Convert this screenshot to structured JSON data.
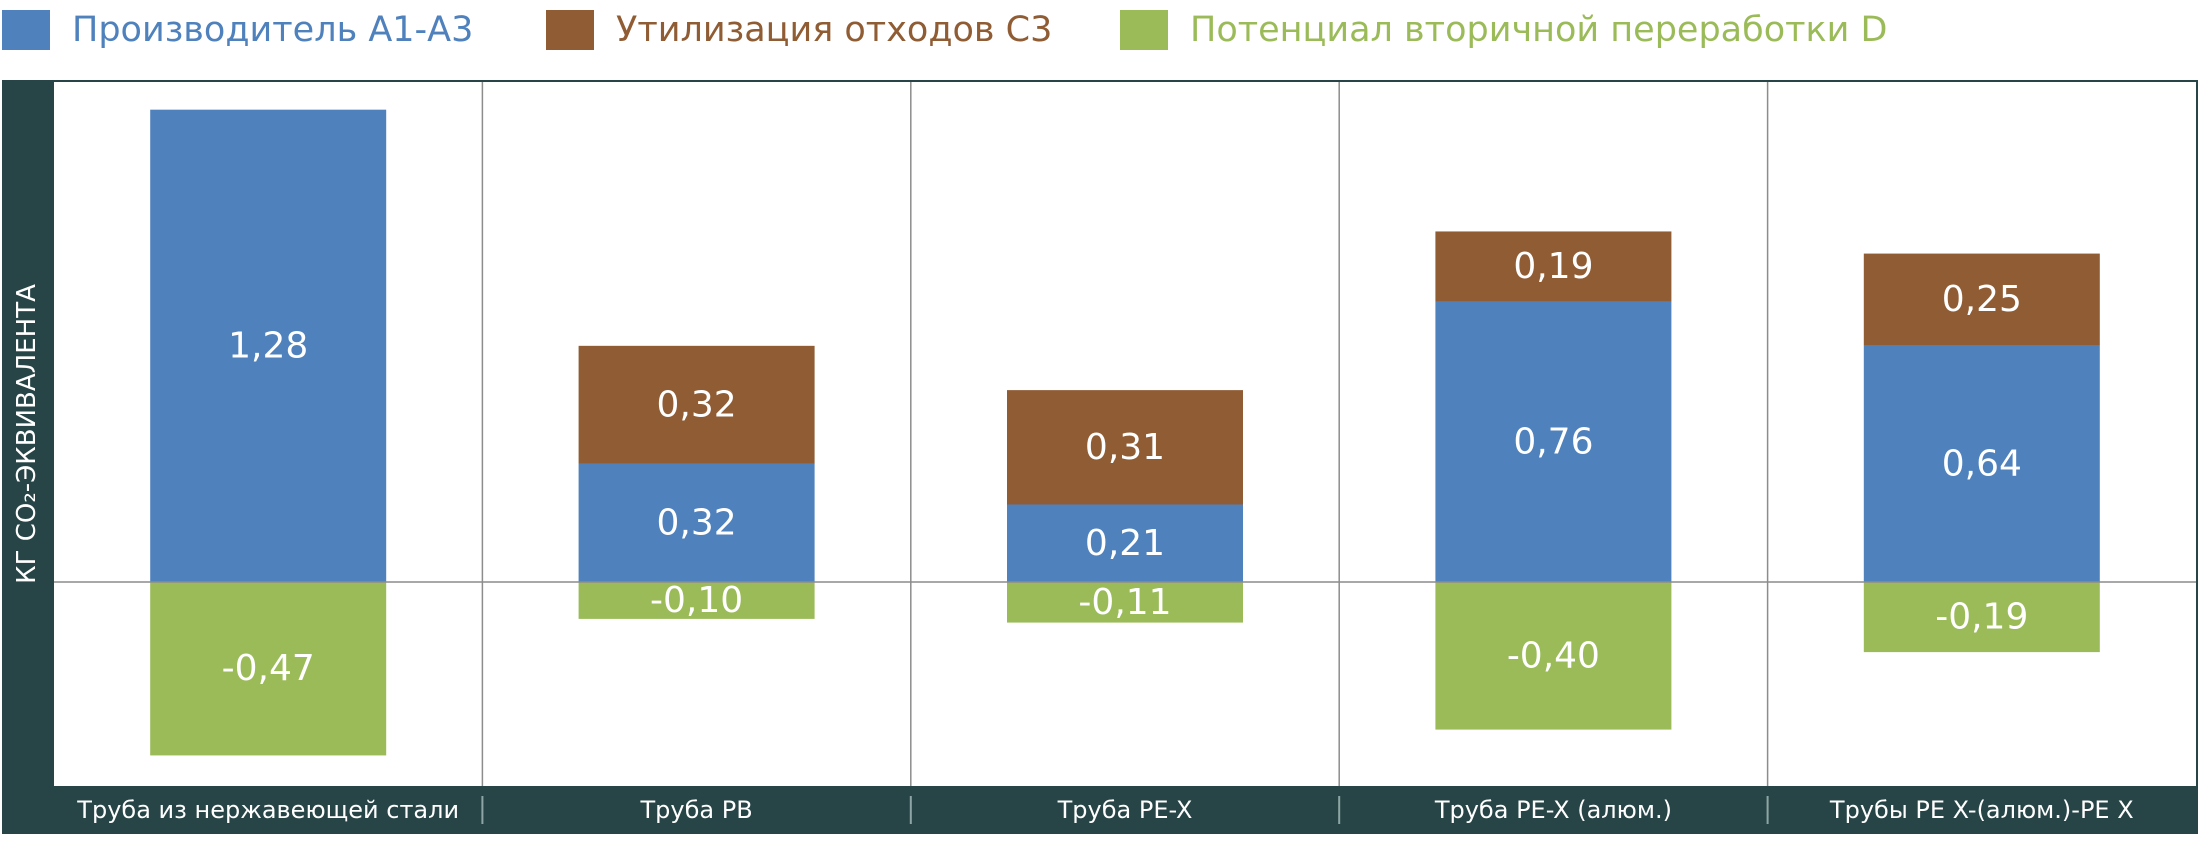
{
  "legend": {
    "a1a3": "Производитель А1-А3",
    "c3": "Утилизация отходов С3",
    "d": "Потенциал вторичной переработки D"
  },
  "colors": {
    "a1a3": "#4f81bd",
    "c3": "#8f5c34",
    "d": "#9bbb59",
    "frame": "#274546",
    "grid": "#8c8c8c"
  },
  "chart_data": {
    "type": "bar",
    "stacked": true,
    "ylabel": "КГ CO₂-ЭКВИВАЛЕНТА",
    "categories": [
      "Труба из нержавеющей стали",
      "Труба PB",
      "Труба PE-X",
      "Труба PE-X (алюм.)",
      "Трубы PE X-(алюм.)-PE X"
    ],
    "series": [
      {
        "key": "a1a3",
        "name": "Производитель А1-А3",
        "values": [
          1.28,
          0.32,
          0.21,
          0.76,
          0.64
        ],
        "labels": [
          "1,28",
          "0,32",
          "0,21",
          "0,76",
          "0,64"
        ]
      },
      {
        "key": "c3",
        "name": "Утилизация отходов С3",
        "values": [
          null,
          0.32,
          0.31,
          0.19,
          0.25
        ],
        "labels": [
          "",
          "0,32",
          "0,31",
          "0,19",
          "0,25"
        ]
      },
      {
        "key": "d",
        "name": "Потенциал вторичной переработки D",
        "values": [
          -0.47,
          -0.1,
          -0.11,
          -0.4,
          -0.19
        ],
        "labels": [
          "-0,47",
          "-0,10",
          "-0,11",
          "-0,40",
          "-0,19"
        ]
      }
    ],
    "ylim": [
      -0.545,
      1.355
    ],
    "grid": "vertical separators and zero line",
    "legend_position": "top"
  }
}
